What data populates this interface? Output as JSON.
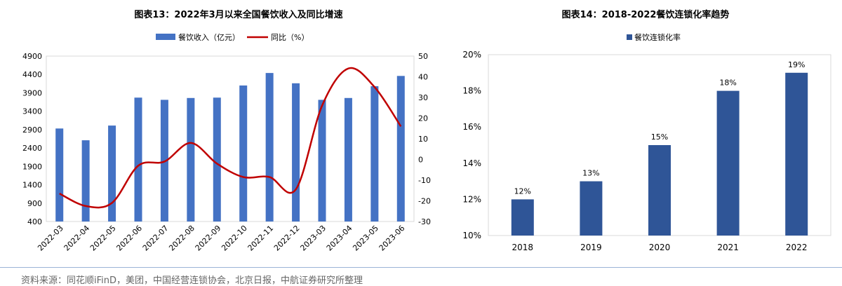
{
  "chart_data": [
    {
      "type": "bar",
      "title": "图表13：2022年3月以来全国餐饮收入及同比增速",
      "categories": [
        "2022-03",
        "2022-04",
        "2022-05",
        "2022-06",
        "2022-07",
        "2022-08",
        "2022-09",
        "2022-10",
        "2022-11",
        "2022-12",
        "2023-03",
        "2023-04",
        "2023-05",
        "2023-06"
      ],
      "series": [
        {
          "name": "餐饮收入（亿元）",
          "type": "bar",
          "axis": "left",
          "color": "#4472c4",
          "values": [
            2930,
            2610,
            3010,
            3770,
            3710,
            3760,
            3770,
            4100,
            4440,
            4160,
            3710,
            3760,
            4080,
            4360
          ]
        },
        {
          "name": "同比（%）",
          "type": "line",
          "axis": "right",
          "color": "#c00000",
          "values": [
            -16.5,
            -22.5,
            -21,
            -3,
            -1,
            8,
            -2,
            -8.5,
            -8.5,
            -14.5,
            26,
            44,
            35,
            16
          ]
        }
      ],
      "ylim_left": [
        400,
        4900
      ],
      "yticks_left": [
        400,
        900,
        1400,
        1900,
        2400,
        2900,
        3400,
        3900,
        4400,
        4900
      ],
      "ylim_right": [
        -30,
        50
      ],
      "yticks_right": [
        -30,
        -20,
        -10,
        0,
        10,
        20,
        30,
        40,
        50
      ],
      "legend": "top"
    },
    {
      "type": "bar",
      "title": "图表14：2018-2022餐饮连锁化率趋势",
      "categories": [
        "2018",
        "2019",
        "2020",
        "2021",
        "2022"
      ],
      "series": [
        {
          "name": "餐饮连锁化率",
          "color": "#2f5597",
          "values": [
            12,
            13,
            15,
            18,
            19
          ]
        }
      ],
      "data_labels": [
        "12%",
        "13%",
        "15%",
        "18%",
        "19%"
      ],
      "ylim": [
        10,
        20
      ],
      "yticks": [
        "10%",
        "12%",
        "14%",
        "16%",
        "18%",
        "20%"
      ],
      "legend": "top"
    }
  ],
  "source": "资料来源：同花顺iFinD，美团，中国经营连锁协会，北京日报，中航证券研究所整理"
}
